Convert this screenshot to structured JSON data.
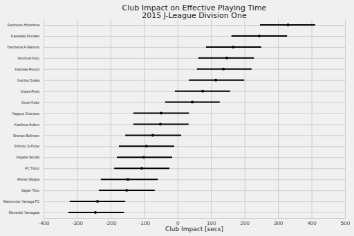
{
  "chart_data": {
    "type": "dot_interval",
    "orientation": "horizontal",
    "title": "Club Impact on Effective Playing Time",
    "subtitle": "2015 J-League Division One",
    "x_label": "Club Impact [secs]",
    "categories": [
      "Sanfrecce Hiroshima",
      "Kawasaki Frontale",
      "Yokohama F-Marinos",
      "Ventforet Kofu",
      "Kashiwa Reysol",
      "Gamba Osaka",
      "Urawa Reds",
      "Vissel Kobe",
      "Nagoya Grampus",
      "Kashima Antlers",
      "Shonan Bellmare",
      "Shimizu S-Pulse",
      "Vegalta Sendai",
      "FC Tokyo",
      "Albirex Niigata",
      "Sagan Tosu",
      "Matsumoto Yamaga FC",
      "Montedio Yamagata"
    ],
    "values": [
      330,
      244,
      166,
      147,
      137,
      114,
      75,
      44,
      -49,
      -51,
      -74,
      -93,
      -101,
      -107,
      -148,
      -152,
      -239,
      -245
    ],
    "ci_low": [
      246,
      161,
      85,
      62,
      58,
      34,
      -8,
      -37,
      -132,
      -132,
      -156,
      -175,
      -181,
      -189,
      -229,
      -235,
      -322,
      -326
    ],
    "ci_high": [
      411,
      327,
      250,
      228,
      221,
      199,
      157,
      126,
      34,
      33,
      11,
      -10,
      -16,
      -24,
      -59,
      -68,
      -156,
      -160
    ],
    "color": "#000000",
    "xlim": [
      -400,
      500
    ],
    "xticks": [
      -400,
      -300,
      -200,
      -100,
      0,
      100,
      200,
      300,
      400,
      500
    ],
    "grid": true
  }
}
